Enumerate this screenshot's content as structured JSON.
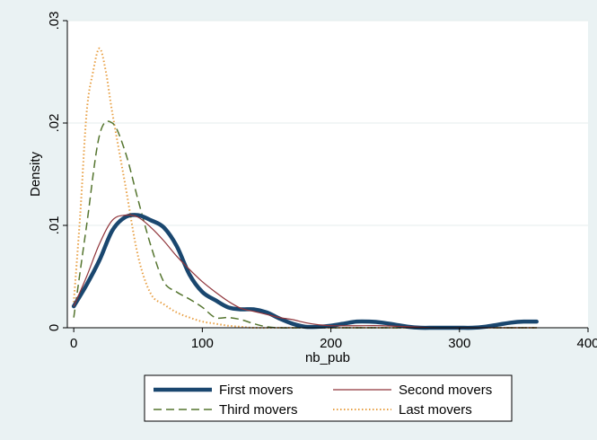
{
  "chart_data": {
    "type": "line",
    "title": "",
    "xlabel": "nb_pub",
    "ylabel": "Density",
    "xlim": [
      -5,
      400
    ],
    "ylim": [
      0,
      0.03
    ],
    "xticks": [
      0,
      100,
      200,
      300,
      400
    ],
    "xtick_labels": [
      "0",
      "100",
      "200",
      "300",
      "400"
    ],
    "yticks": [
      0,
      0.01,
      0.02,
      0.03
    ],
    "ytick_labels": [
      "0",
      ".01",
      ".02",
      ".03"
    ],
    "grid": true,
    "legend_position": "bottom",
    "series": [
      {
        "name": "First movers",
        "color": "#1a476f",
        "style": "solid-thick",
        "x": [
          0,
          10,
          20,
          30,
          40,
          50,
          60,
          70,
          80,
          90,
          100,
          110,
          120,
          130,
          140,
          150,
          160,
          170,
          180,
          190,
          200,
          210,
          220,
          230,
          240,
          250,
          260,
          270,
          280,
          290,
          300,
          310,
          320,
          330,
          340,
          350,
          360
        ],
        "y": [
          0.0021,
          0.0042,
          0.0066,
          0.0095,
          0.0108,
          0.011,
          0.0105,
          0.0098,
          0.008,
          0.0052,
          0.0035,
          0.0027,
          0.002,
          0.0018,
          0.0018,
          0.0015,
          0.0009,
          0.0004,
          0.0001,
          0.0001,
          0.0002,
          0.0004,
          0.0006,
          0.0006,
          0.0005,
          0.0003,
          0.0001,
          0.0,
          0.0,
          0.0,
          0.0,
          0.0,
          0.0001,
          0.0003,
          0.0005,
          0.0006,
          0.0006
        ]
      },
      {
        "name": "Second movers",
        "color": "#90353b",
        "style": "solid-thin",
        "x": [
          0,
          10,
          20,
          30,
          40,
          50,
          60,
          70,
          80,
          90,
          100,
          110,
          120,
          130,
          140,
          150,
          160,
          170,
          180,
          190,
          200,
          220,
          240,
          260,
          280,
          300,
          320,
          340,
          360
        ],
        "y": [
          0.0021,
          0.005,
          0.0082,
          0.0105,
          0.011,
          0.0108,
          0.0098,
          0.0085,
          0.007,
          0.0057,
          0.0045,
          0.0035,
          0.0026,
          0.0019,
          0.0016,
          0.0013,
          0.001,
          0.0008,
          0.0005,
          0.0003,
          0.0002,
          0.0002,
          0.0002,
          0.0001,
          0.0,
          0.0,
          0.0,
          0.0,
          0.0
        ]
      },
      {
        "name": "Third movers",
        "color": "#55752f",
        "style": "dashed",
        "x": [
          0,
          10,
          20,
          30,
          40,
          50,
          60,
          70,
          80,
          90,
          100,
          110,
          120,
          130,
          140,
          150,
          160,
          180,
          200,
          240,
          280,
          320,
          360
        ],
        "y": [
          0.001,
          0.01,
          0.0188,
          0.02,
          0.0172,
          0.0125,
          0.008,
          0.0045,
          0.0035,
          0.0028,
          0.002,
          0.001,
          0.001,
          0.0008,
          0.0004,
          0.0001,
          0.0,
          0.0,
          0.0,
          0.0,
          0.0,
          0.0,
          0.0
        ]
      },
      {
        "name": "Last movers",
        "color": "#e8a045",
        "style": "dotted",
        "x": [
          0,
          5,
          10,
          15,
          20,
          25,
          30,
          40,
          50,
          60,
          70,
          80,
          90,
          100,
          110,
          120,
          130,
          140,
          160,
          200,
          260,
          320,
          360
        ],
        "y": [
          0.0025,
          0.011,
          0.021,
          0.025,
          0.0273,
          0.025,
          0.021,
          0.014,
          0.007,
          0.0033,
          0.0023,
          0.0015,
          0.001,
          0.0006,
          0.0004,
          0.0002,
          0.0001,
          0.0,
          0.0,
          0.0,
          0.0,
          0.0,
          0.0
        ]
      }
    ]
  }
}
